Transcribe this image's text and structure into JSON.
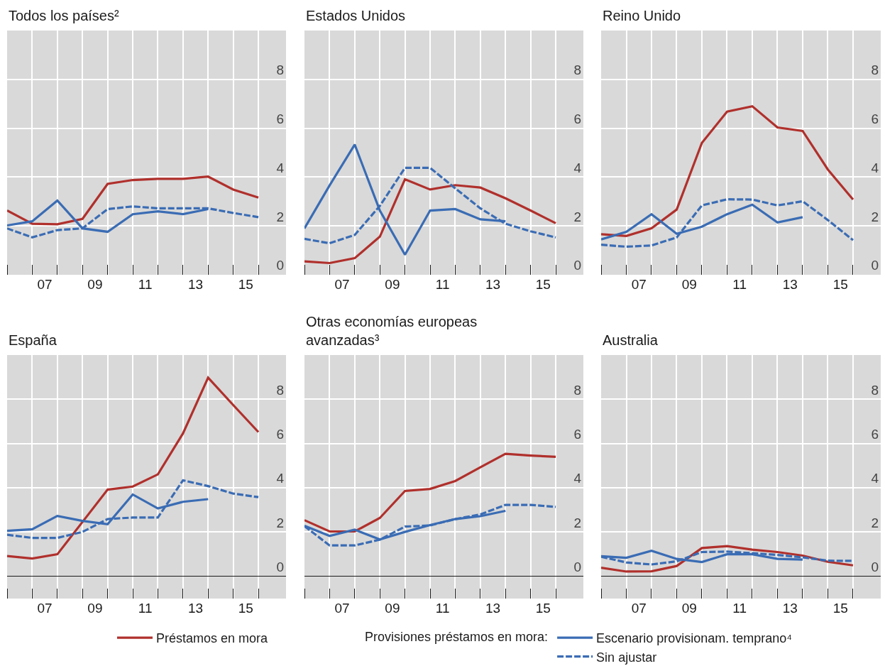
{
  "chart_data": [
    {
      "type": "line",
      "title": "Todos los países²",
      "x": [
        5.5,
        6.5,
        7.5,
        8.5,
        9.5,
        10.5,
        11.5,
        12.5,
        13.5,
        14.5,
        15.5
      ],
      "xlim": [
        5.5,
        16.6
      ],
      "xticks": [
        {
          "value": 5.5,
          "label": null
        },
        {
          "value": 6.5,
          "label": null
        },
        {
          "value": 7.5,
          "label": null
        },
        {
          "value": 8.5,
          "label": null
        },
        {
          "value": 9.5,
          "label": null
        },
        {
          "value": 10.5,
          "label": null
        },
        {
          "value": 11.5,
          "label": null
        },
        {
          "value": 12.5,
          "label": null
        },
        {
          "value": 13.5,
          "label": null
        },
        {
          "value": 14.5,
          "label": null
        },
        {
          "value": 15.5,
          "label": null
        },
        {
          "value": 7,
          "label": "07"
        },
        {
          "value": 9,
          "label": "09"
        },
        11,
        13,
        15
      ],
      "ylim": [
        0,
        10
      ],
      "yticks": [
        0,
        2,
        4,
        6,
        8
      ],
      "grid": true,
      "legend": "bottom",
      "legend_title": "Provisiones préstamos en mora:",
      "series": [
        {
          "name": "Préstamos en mora",
          "color": "#b0302c",
          "line_style": "solid",
          "values": [
            2.63,
            2.09,
            2.07,
            2.29,
            3.72,
            3.88,
            3.93,
            3.93,
            4.02,
            3.49,
            3.16
          ]
        },
        {
          "name": "Escenario provisionam. temprano⁴",
          "color": "#3a6cb4",
          "line_style": "solid",
          "values": [
            2.02,
            2.19,
            3.04,
            1.9,
            1.76,
            2.48,
            2.6,
            2.48,
            2.69,
            null,
            null
          ]
        },
        {
          "name": "Sin ajustar",
          "color": "#3a6cb4",
          "line_style": "dashed",
          "values": [
            1.9,
            1.53,
            1.83,
            1.9,
            2.69,
            2.8,
            2.72,
            2.72,
            2.72,
            2.53,
            2.36
          ]
        }
      ]
    },
    {
      "type": "line",
      "title": "Estados Unidos",
      "x": [
        5.5,
        6.5,
        7.5,
        8.5,
        9.5,
        10.5,
        11.5,
        12.5,
        13.5,
        14.5,
        15.5
      ],
      "xlim": [
        5.5,
        16.6
      ],
      "xticks": [
        {
          "value": 5.5,
          "label": null
        },
        {
          "value": 6.5,
          "label": null
        },
        {
          "value": 7.5,
          "label": null
        },
        {
          "value": 8.5,
          "label": null
        },
        {
          "value": 9.5,
          "label": null
        },
        {
          "value": 10.5,
          "label": null
        },
        {
          "value": 11.5,
          "label": null
        },
        {
          "value": 12.5,
          "label": null
        },
        {
          "value": 13.5,
          "label": null
        },
        {
          "value": 14.5,
          "label": null
        },
        {
          "value": 15.5,
          "label": null
        },
        {
          "value": 7,
          "label": "07"
        },
        {
          "value": 9,
          "label": "09"
        },
        11,
        13,
        15
      ],
      "ylim": [
        0,
        10
      ],
      "yticks": [
        0,
        2,
        4,
        6,
        8
      ],
      "grid": true,
      "series": [
        {
          "color": "#b0302c",
          "line_style": "solid",
          "values": [
            0.55,
            0.48,
            0.68,
            1.56,
            3.91,
            3.49,
            3.67,
            3.57,
            3.13,
            2.63,
            2.11
          ]
        },
        {
          "color": "#3a6cb4",
          "line_style": "solid",
          "values": [
            1.9,
            3.66,
            5.33,
            2.63,
            0.82,
            2.63,
            2.69,
            2.27,
            2.19,
            null,
            null
          ]
        },
        {
          "color": "#3a6cb4",
          "line_style": "dashed",
          "values": [
            1.47,
            1.29,
            1.63,
            2.82,
            4.38,
            4.38,
            3.54,
            2.72,
            2.09,
            1.78,
            1.53
          ]
        }
      ]
    },
    {
      "type": "line",
      "title": "Reino Unido",
      "x": [
        5.5,
        6.5,
        7.5,
        8.5,
        9.5,
        10.5,
        11.5,
        12.5,
        13.5,
        14.5,
        15.5
      ],
      "xlim": [
        5.5,
        16.6
      ],
      "xticks": [
        {
          "value": 5.5,
          "label": null
        },
        {
          "value": 6.5,
          "label": null
        },
        {
          "value": 7.5,
          "label": null
        },
        {
          "value": 8.5,
          "label": null
        },
        {
          "value": 9.5,
          "label": null
        },
        {
          "value": 10.5,
          "label": null
        },
        {
          "value": 11.5,
          "label": null
        },
        {
          "value": 12.5,
          "label": null
        },
        {
          "value": 13.5,
          "label": null
        },
        {
          "value": 14.5,
          "label": null
        },
        {
          "value": 15.5,
          "label": null
        },
        {
          "value": 7,
          "label": "07"
        },
        {
          "value": 9,
          "label": "09"
        },
        11,
        13,
        15
      ],
      "ylim": [
        0,
        10
      ],
      "yticks": [
        0,
        2,
        4,
        6,
        8
      ],
      "grid": true,
      "series": [
        {
          "color": "#b0302c",
          "line_style": "solid",
          "values": [
            1.66,
            1.59,
            1.9,
            2.67,
            5.4,
            6.68,
            6.9,
            6.03,
            5.89,
            4.31,
            3.08
          ]
        },
        {
          "color": "#3a6cb4",
          "line_style": "solid",
          "values": [
            1.45,
            1.76,
            2.48,
            1.68,
            1.97,
            2.48,
            2.87,
            2.14,
            2.36,
            null,
            null
          ]
        },
        {
          "color": "#3a6cb4",
          "line_style": "dashed",
          "values": [
            1.23,
            1.15,
            1.2,
            1.53,
            2.84,
            3.09,
            3.08,
            2.84,
            3.01,
            2.24,
            1.42
          ]
        }
      ]
    },
    {
      "type": "line",
      "title": "España",
      "x": [
        5.5,
        6.5,
        7.5,
        8.5,
        9.5,
        10.5,
        11.5,
        12.5,
        13.5,
        14.5,
        15.5
      ],
      "xlim": [
        5.5,
        16.6
      ],
      "xticks": [
        {
          "value": 5.5,
          "label": null
        },
        {
          "value": 6.5,
          "label": null
        },
        {
          "value": 7.5,
          "label": null
        },
        {
          "value": 8.5,
          "label": null
        },
        {
          "value": 9.5,
          "label": null
        },
        {
          "value": 10.5,
          "label": null
        },
        {
          "value": 11.5,
          "label": null
        },
        {
          "value": 12.5,
          "label": null
        },
        {
          "value": 13.5,
          "label": null
        },
        {
          "value": 14.5,
          "label": null
        },
        {
          "value": 15.5,
          "label": null
        },
        {
          "value": 7,
          "label": "07"
        },
        {
          "value": 9,
          "label": "09"
        },
        11,
        13,
        15
      ],
      "ylim": [
        -1,
        10
      ],
      "yticks": [
        0,
        2,
        4,
        6,
        8
      ],
      "grid": true,
      "series": [
        {
          "color": "#b0302c",
          "line_style": "solid",
          "values": [
            0.92,
            0.81,
            1.0,
            2.46,
            3.92,
            4.06,
            4.61,
            6.46,
            8.98,
            7.74,
            6.52
          ]
        },
        {
          "color": "#3a6cb4",
          "line_style": "solid",
          "values": [
            2.06,
            2.13,
            2.73,
            2.51,
            2.36,
            3.7,
            3.07,
            3.37,
            3.49,
            null,
            null
          ]
        },
        {
          "color": "#3a6cb4",
          "line_style": "dashed",
          "values": [
            1.88,
            1.74,
            1.74,
            2.01,
            2.59,
            2.66,
            2.66,
            4.34,
            4.08,
            3.74,
            3.58
          ]
        }
      ]
    },
    {
      "type": "line",
      "title": "Otras economías europeas\navanzadas³",
      "x": [
        5.5,
        6.5,
        7.5,
        8.5,
        9.5,
        10.5,
        11.5,
        12.5,
        13.5,
        14.5,
        15.5
      ],
      "xlim": [
        5.5,
        16.6
      ],
      "xticks": [
        {
          "value": 5.5,
          "label": null
        },
        {
          "value": 6.5,
          "label": null
        },
        {
          "value": 7.5,
          "label": null
        },
        {
          "value": 8.5,
          "label": null
        },
        {
          "value": 9.5,
          "label": null
        },
        {
          "value": 10.5,
          "label": null
        },
        {
          "value": 11.5,
          "label": null
        },
        {
          "value": 12.5,
          "label": null
        },
        {
          "value": 13.5,
          "label": null
        },
        {
          "value": 14.5,
          "label": null
        },
        {
          "value": 15.5,
          "label": null
        },
        {
          "value": 7,
          "label": "07"
        },
        {
          "value": 9,
          "label": "09"
        },
        11,
        13,
        15
      ],
      "ylim": [
        -1,
        10
      ],
      "yticks": [
        0,
        2,
        4,
        6,
        8
      ],
      "grid": true,
      "series": [
        {
          "color": "#b0302c",
          "line_style": "solid",
          "values": [
            2.54,
            2.03,
            2.03,
            2.64,
            3.86,
            3.95,
            4.31,
            4.93,
            5.54,
            5.46,
            5.4
          ]
        },
        {
          "color": "#3a6cb4",
          "line_style": "solid",
          "values": [
            2.29,
            1.83,
            2.11,
            1.67,
            2.01,
            2.32,
            2.59,
            2.72,
            2.96,
            null,
            null
          ]
        },
        {
          "color": "#3a6cb4",
          "line_style": "dashed",
          "values": [
            2.27,
            1.4,
            1.4,
            1.66,
            2.25,
            2.3,
            2.59,
            2.8,
            3.23,
            3.23,
            3.14
          ]
        }
      ]
    },
    {
      "type": "line",
      "title": "Australia",
      "x": [
        5.5,
        6.5,
        7.5,
        8.5,
        9.5,
        10.5,
        11.5,
        12.5,
        13.5,
        14.5,
        15.5
      ],
      "xlim": [
        5.5,
        16.6
      ],
      "xticks": [
        {
          "value": 5.5,
          "label": null
        },
        {
          "value": 6.5,
          "label": null
        },
        {
          "value": 7.5,
          "label": null
        },
        {
          "value": 8.5,
          "label": null
        },
        {
          "value": 9.5,
          "label": null
        },
        {
          "value": 10.5,
          "label": null
        },
        {
          "value": 11.5,
          "label": null
        },
        {
          "value": 12.5,
          "label": null
        },
        {
          "value": 13.5,
          "label": null
        },
        {
          "value": 14.5,
          "label": null
        },
        {
          "value": 15.5,
          "label": null
        },
        {
          "value": 7,
          "label": "07"
        },
        {
          "value": 9,
          "label": "09"
        },
        11,
        13,
        15
      ],
      "ylim": [
        -1,
        10
      ],
      "yticks": [
        0,
        2,
        4,
        6,
        8
      ],
      "grid": true,
      "series": [
        {
          "color": "#b0302c",
          "line_style": "solid",
          "values": [
            0.39,
            0.22,
            0.23,
            0.47,
            1.28,
            1.37,
            1.21,
            1.1,
            0.94,
            0.66,
            0.5
          ]
        },
        {
          "color": "#3a6cb4",
          "line_style": "solid",
          "values": [
            0.91,
            0.84,
            1.16,
            0.79,
            0.65,
            1.0,
            1.0,
            0.79,
            0.76,
            null,
            null
          ]
        },
        {
          "color": "#3a6cb4",
          "line_style": "dashed",
          "values": [
            0.89,
            0.63,
            0.54,
            0.68,
            1.1,
            1.12,
            1.05,
            0.97,
            0.86,
            0.71,
            0.7
          ]
        }
      ]
    }
  ]
}
